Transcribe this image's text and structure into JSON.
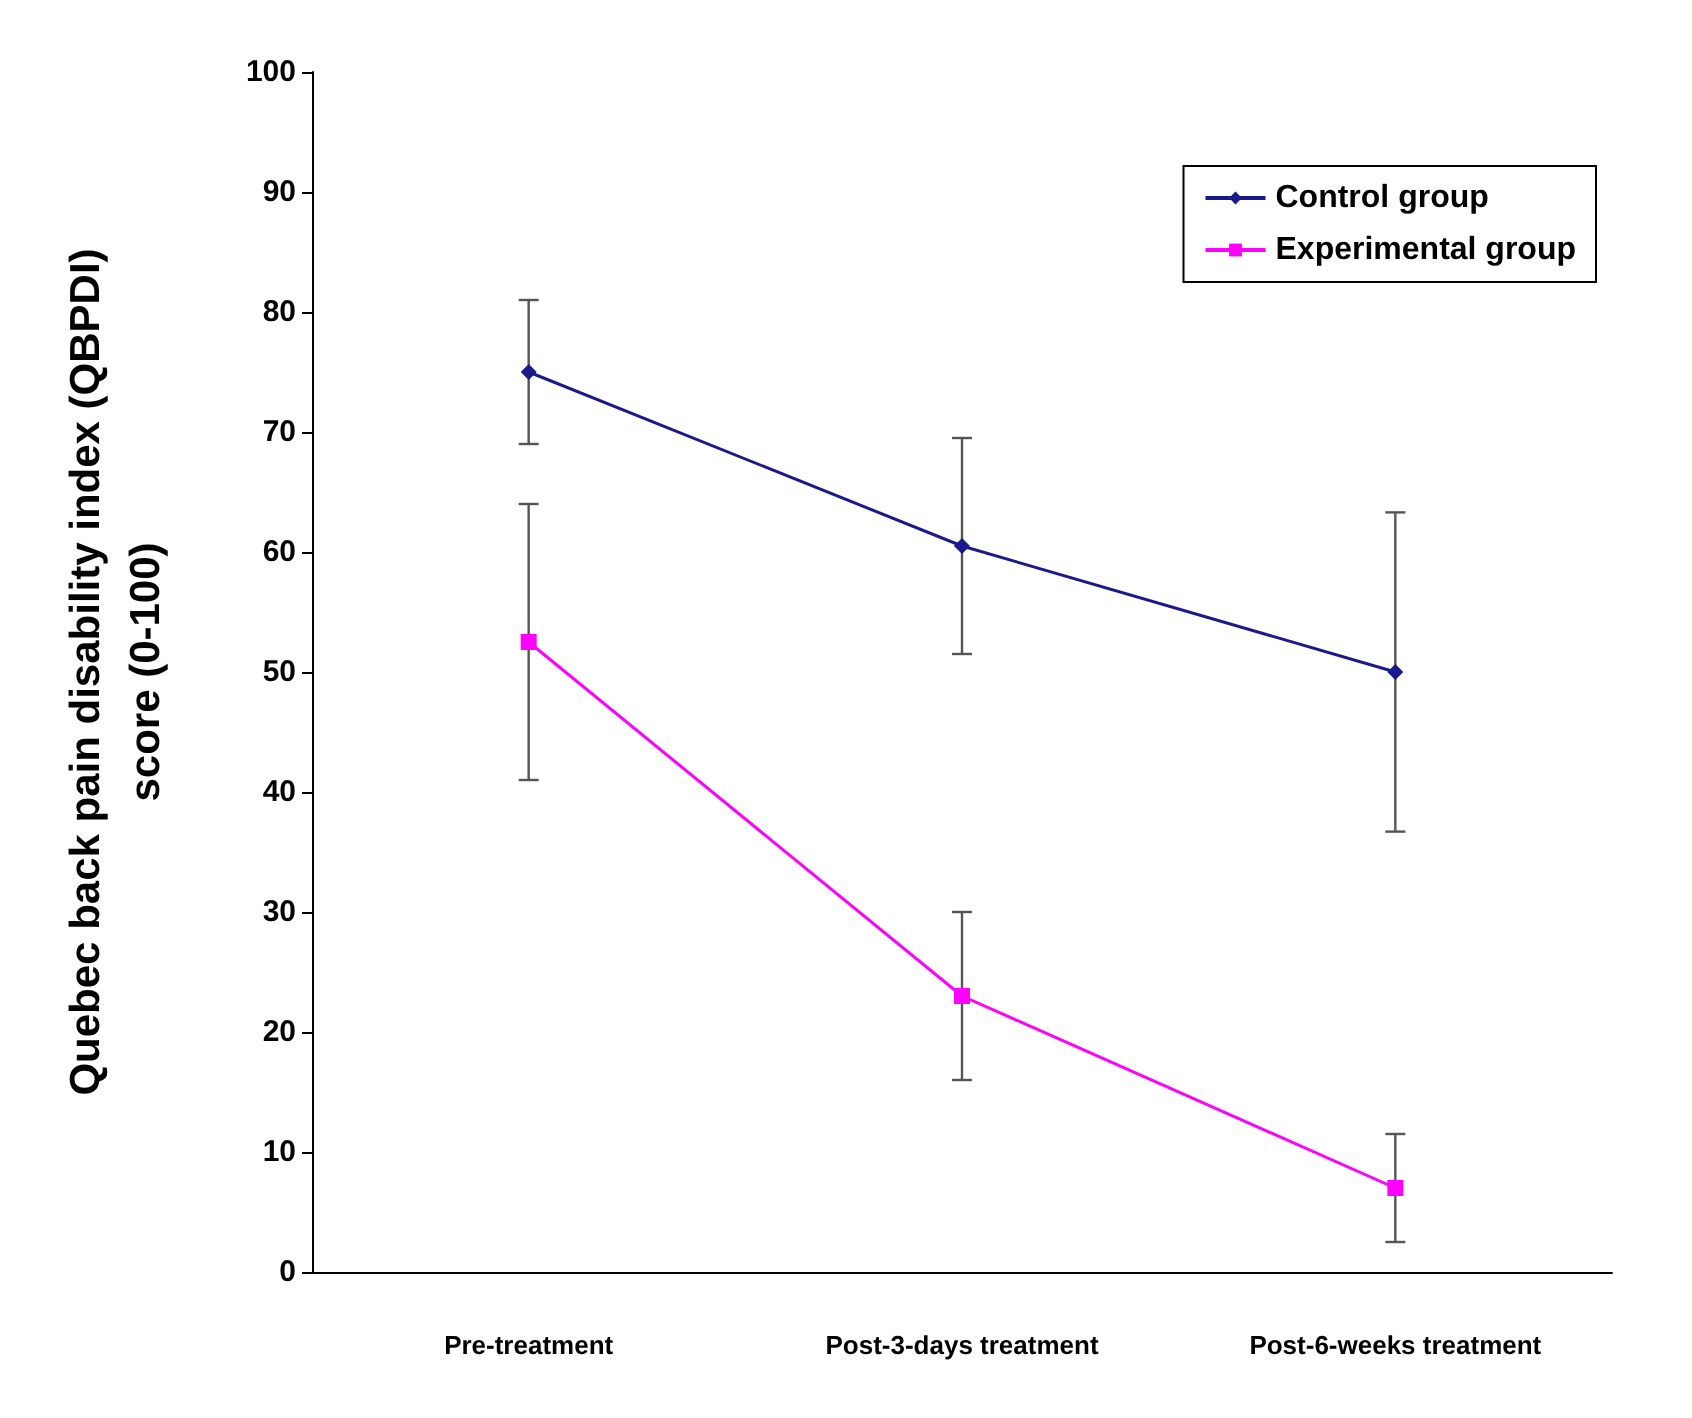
{
  "chart_data": {
    "type": "line",
    "ylabel": "Quebec back pain disability index (QBPDI)\nscore (0-100)",
    "categories": [
      "Pre-treatment",
      "Post-3-days treatment",
      "Post-6-weeks treatment"
    ],
    "series": [
      {
        "name": "Control group",
        "color": "#1a1a8c",
        "marker": "diamond",
        "values": [
          75,
          60.5,
          50
        ],
        "errors": [
          6,
          9,
          13.3
        ]
      },
      {
        "name": "Experimental group",
        "color": "#ff00ff",
        "marker": "square",
        "values": [
          52.5,
          23,
          7
        ],
        "errors": [
          11.5,
          7,
          4.5
        ]
      }
    ],
    "ylim": [
      0,
      100
    ],
    "yticks": [
      0,
      10,
      20,
      30,
      40,
      50,
      60,
      70,
      80,
      90,
      100
    ],
    "grid": false,
    "legend": "top right",
    "line_style": "solid"
  }
}
